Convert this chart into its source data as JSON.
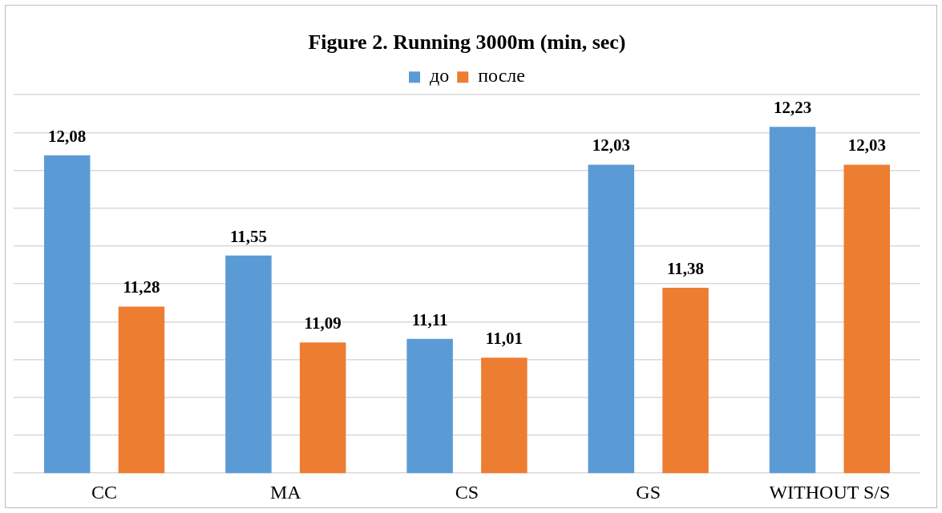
{
  "chart_data": {
    "type": "bar",
    "title": "Figure 2. Running 3000m (min, sec)",
    "categories": [
      "CC",
      "MA",
      "CS",
      "GS",
      "WITHOUT S/S"
    ],
    "series": [
      {
        "name": "до",
        "color": "#5b9bd5",
        "values": [
          12.08,
          11.55,
          11.11,
          12.03,
          12.23
        ],
        "value_labels": [
          "12,08",
          "11,55",
          "11,11",
          "12,03",
          "12,23"
        ]
      },
      {
        "name": "после",
        "color": "#ed7d31",
        "values": [
          11.28,
          11.09,
          11.01,
          11.38,
          12.03
        ],
        "value_labels": [
          "11,28",
          "11,09",
          "11,01",
          "11,38",
          "12,03"
        ]
      }
    ],
    "ylim": [
      10.4,
      12.4
    ],
    "yticks": [
      {
        "value": 10.4,
        "label": null
      },
      {
        "value": 10.6,
        "label": null
      },
      {
        "value": 10.8,
        "label": null
      },
      {
        "value": 11,
        "label": null
      },
      {
        "value": 11.2,
        "label": null
      },
      {
        "value": 11.4,
        "label": null
      },
      {
        "value": 11.6,
        "label": null
      },
      {
        "value": 11.8,
        "label": null
      },
      {
        "value": 12,
        "label": null
      },
      {
        "value": 12.2,
        "label": null
      },
      {
        "value": 12.4,
        "label": null
      }
    ],
    "tick_labels": "x",
    "grid": "y",
    "legend": "top"
  }
}
